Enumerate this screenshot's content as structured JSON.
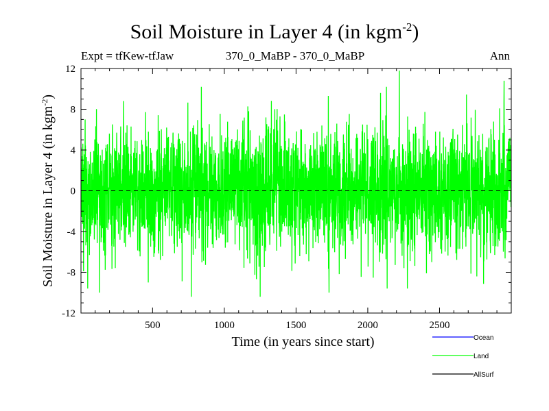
{
  "header": {
    "title": "Soil Moisture in Layer 4 (in kgm",
    "title_sup": "-2",
    "title_end": ")",
    "expt": "Expt = tfKew-tfJaw",
    "subtitle": "370_0_MaBP - 370_0_MaBP",
    "season": "Ann"
  },
  "chart_data": {
    "type": "line",
    "xlabel": "Time (in years since start)",
    "ylabel": "Soil Moisture in Layer 4 (in kgm-2)",
    "ylabel_main": "Soil Moisture in Layer 4 (in kgm",
    "ylabel_sup": "-2",
    "ylabel_end": ")",
    "xlim": [
      1,
      3000
    ],
    "ylim": [
      -12,
      12
    ],
    "xticks": [
      500,
      1000,
      1500,
      2000,
      2500
    ],
    "xtick_labels": [
      "500",
      "1000",
      "1500",
      "2000",
      "2500"
    ],
    "yticks": [
      -12,
      -8,
      -4,
      0,
      4,
      8,
      12
    ],
    "ytick_labels": [
      "-12",
      "-8",
      "-4",
      "0",
      "4",
      "8",
      "12"
    ],
    "zero_line": 0,
    "legend": [
      {
        "name": "Ocean",
        "color": "#0000ff"
      },
      {
        "name": "Land",
        "color": "#00ff00"
      },
      {
        "name": "AllSurf",
        "color": "#000000"
      }
    ],
    "series": [
      {
        "name": "Land",
        "color": "#00ff00",
        "noise_std": 3.0,
        "extremes": [
          {
            "x": 30,
            "y": 7.0
          },
          {
            "x": 60,
            "y": -6.3
          },
          {
            "x": 130,
            "y": -10.0
          },
          {
            "x": 470,
            "y": -9.0
          },
          {
            "x": 770,
            "y": -10.4
          },
          {
            "x": 840,
            "y": 10.2
          },
          {
            "x": 1250,
            "y": -10.4
          },
          {
            "x": 1730,
            "y": -10.0
          },
          {
            "x": 2130,
            "y": 10.2
          },
          {
            "x": 2220,
            "y": 11.8
          },
          {
            "x": 2760,
            "y": -8.4
          },
          {
            "x": 2950,
            "y": 10.8
          }
        ]
      }
    ]
  }
}
